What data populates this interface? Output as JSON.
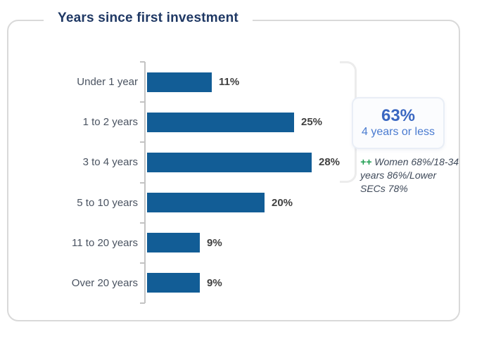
{
  "card": {
    "title": "Years since first investment"
  },
  "chart_data": {
    "type": "bar",
    "orientation": "horizontal",
    "title": "Years since first investment",
    "categories": [
      "Under 1 year",
      "1 to 2 years",
      "3 to 4 years",
      "5 to 10 years",
      "11 to 20 years",
      "Over 20 years"
    ],
    "values": [
      11,
      25,
      28,
      20,
      9,
      9
    ],
    "value_labels": [
      "11%",
      "25%",
      "28%",
      "20%",
      "9%",
      "9%"
    ],
    "xlabel": "",
    "ylabel": "",
    "xlim": [
      0,
      30
    ],
    "grid": false,
    "legend": false,
    "bar_color": "#125d96",
    "annotations": [
      {
        "text": "63% 4 years or less",
        "applies_to": [
          "Under 1 year",
          "1 to 2 years",
          "3 to 4 years"
        ]
      },
      {
        "text": "++ Women 68%/18-34 years 86%/Lower SECs 78%"
      }
    ]
  },
  "callout": {
    "value": "63%",
    "label": "4 years or less",
    "value_color": "#3a67c1",
    "label_color": "#4a7bd0"
  },
  "annotation": {
    "marker": "++",
    "text": " Women 68%/18-34 years 86%/Lower SECs 78%",
    "marker_color": "#1e9e50"
  },
  "colors": {
    "title": "#1f3864",
    "bar": "#125d96",
    "category_label": "#4a5361",
    "value_label": "#404040",
    "axis": "#c3c3c3",
    "card_border": "#d9d9d9",
    "bracket": "#ececec"
  }
}
